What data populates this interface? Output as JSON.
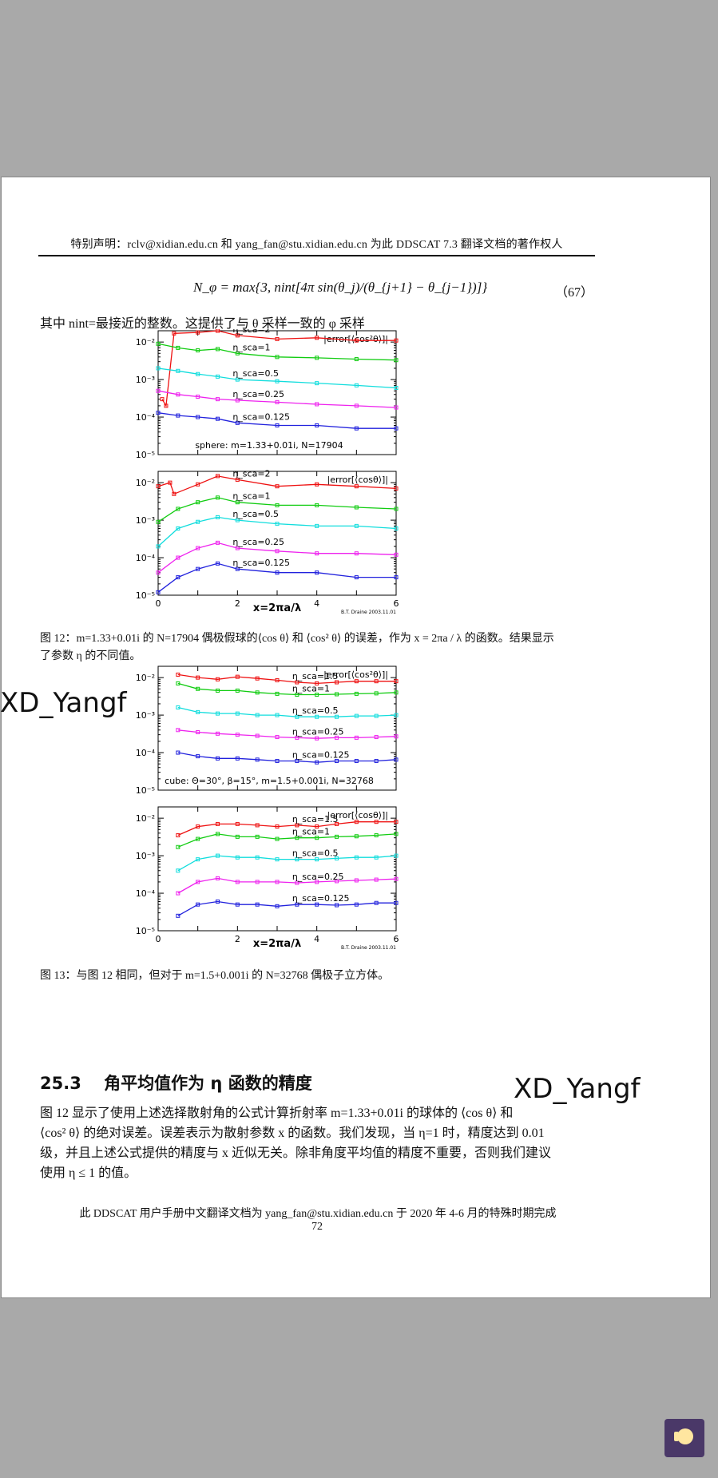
{
  "header": "特别声明：rclv@xidian.edu.cn 和 yang_fan@stu.xidian.edu.cn 为此 DDSCAT 7.3 翻译文档的著作权人",
  "equation": "N_φ = max{3, nint[4π sin(θ_j)/(θ_{j+1} − θ_{j−1})]}",
  "equation_number": "（67）",
  "intro": "其中 nint=最接近的整数。这提供了与 θ 采样一致的 φ 采样",
  "figure12_caption_line1": "图 12：m=1.33+0.01i 的 N=17904 偶极假球的⟨cos θ⟩ 和 ⟨cos² θ⟩ 的误差，作为 x = 2πa / λ 的函数。结果显示",
  "figure12_caption_line2": "了参数 η 的不同值。",
  "figure13_caption": "图 13：与图 12 相同，但对于 m=1.5+0.001i 的 N=32768 偶极子立方体。",
  "section_title": "25.3　 角平均值作为 η 函数的精度",
  "body_lines": [
    "图 12 显示了使用上述选择散射角的公式计算折射率 m=1.33+0.01i 的球体的 ⟨cos θ⟩ 和",
    "⟨cos² θ⟩ 的绝对误差。误差表示为散射参数 x 的函数。我们发现，当 η=1 时，精度达到 0.01",
    "级，并且上述公式提供的精度与 x 近似无关。除非角度平均值的精度不重要，否则我们建议",
    "使用 η ≤ 1 的值。"
  ],
  "footer": "此 DDSCAT 用户手册中文翻译文档为 yang_fan@stu.xidian.edu.cn 于 2020 年 4-6 月的特殊时期完成",
  "page_number": "72",
  "watermark": "XD_Yangf",
  "colors": {
    "red": "#ee1111",
    "green": "#11cc11",
    "cyan": "#11dddd",
    "magenta": "#ee22ee",
    "blue": "#2222dd"
  },
  "chart_data": [
    {
      "type": "line",
      "title": "|error[⟨cos²θ⟩]|",
      "subtitle": "sphere: m=1.33+0.01i, N=17904",
      "yscale": "log",
      "ylim": [
        1e-05,
        0.02
      ],
      "xlim": [
        0,
        6
      ],
      "yticks": [
        "10⁻²",
        "10⁻³",
        "10⁻⁴",
        "10⁻⁵"
      ],
      "xticks": [],
      "series": [
        {
          "name": "η_sca=2",
          "color": "red",
          "x": [
            0.1,
            0.2,
            0.4,
            1.0,
            1.5,
            2.0,
            3.0,
            4.0,
            5.0,
            6.0
          ],
          "y": [
            0.0003,
            0.0002,
            0.017,
            0.018,
            0.02,
            0.015,
            0.012,
            0.013,
            0.011,
            0.011
          ]
        },
        {
          "name": "η_sca=1",
          "color": "green",
          "x": [
            0,
            0.5,
            1.0,
            1.5,
            2.0,
            3.0,
            4.0,
            5.0,
            6.0
          ],
          "y": [
            0.009,
            0.007,
            0.006,
            0.0065,
            0.005,
            0.004,
            0.0038,
            0.0035,
            0.0033
          ]
        },
        {
          "name": "η_sca=0.5",
          "color": "cyan",
          "x": [
            0,
            0.5,
            1.0,
            1.5,
            2.0,
            3.0,
            4.0,
            5.0,
            6.0
          ],
          "y": [
            0.002,
            0.0017,
            0.0014,
            0.0012,
            0.001,
            0.0009,
            0.0008,
            0.0007,
            0.0006
          ]
        },
        {
          "name": "η_sca=0.25",
          "color": "magenta",
          "x": [
            0,
            0.5,
            1.0,
            1.5,
            2.0,
            3.0,
            4.0,
            5.0,
            6.0
          ],
          "y": [
            0.0005,
            0.0004,
            0.00035,
            0.0003,
            0.00028,
            0.00025,
            0.00022,
            0.0002,
            0.00018
          ]
        },
        {
          "name": "η_sca=0.125",
          "color": "blue",
          "x": [
            0,
            0.5,
            1.0,
            1.5,
            2.0,
            3.0,
            4.0,
            5.0,
            6.0
          ],
          "y": [
            0.00013,
            0.00011,
            0.0001,
            9e-05,
            7e-05,
            6e-05,
            6e-05,
            5e-05,
            5e-05
          ]
        }
      ]
    },
    {
      "type": "line",
      "title": "|error[⟨cosθ⟩]|",
      "yscale": "log",
      "ylim": [
        1e-05,
        0.02
      ],
      "xlim": [
        0,
        6
      ],
      "yticks": [
        "10⁻²",
        "10⁻³",
        "10⁻⁴",
        "10⁻⁵"
      ],
      "xticks": [
        "0",
        "2",
        "4",
        "6"
      ],
      "xlabel": "x=2πa/λ",
      "credit": "B.T. Draine 2003.11.01",
      "series": [
        {
          "name": "η_sca=2",
          "color": "red",
          "x": [
            0,
            0.3,
            0.4,
            1.0,
            1.5,
            2.0,
            3.0,
            4.0,
            5.0,
            6.0
          ],
          "y": [
            0.008,
            0.01,
            0.005,
            0.009,
            0.015,
            0.012,
            0.008,
            0.009,
            0.008,
            0.007
          ]
        },
        {
          "name": "η_sca=1",
          "color": "green",
          "x": [
            0,
            0.5,
            1.0,
            1.5,
            2.0,
            3.0,
            4.0,
            5.0,
            6.0
          ],
          "y": [
            0.0009,
            0.002,
            0.003,
            0.004,
            0.003,
            0.0025,
            0.0025,
            0.0022,
            0.002
          ]
        },
        {
          "name": "η_sca=0.5",
          "color": "cyan",
          "x": [
            0,
            0.5,
            1.0,
            1.5,
            2.0,
            3.0,
            4.0,
            5.0,
            6.0
          ],
          "y": [
            0.0002,
            0.0006,
            0.0009,
            0.0012,
            0.001,
            0.0008,
            0.0007,
            0.0007,
            0.0006
          ]
        },
        {
          "name": "η_sca=0.25",
          "color": "magenta",
          "x": [
            0,
            0.5,
            1.0,
            1.5,
            2.0,
            3.0,
            4.0,
            5.0,
            6.0
          ],
          "y": [
            4e-05,
            0.0001,
            0.00018,
            0.00025,
            0.00018,
            0.00015,
            0.00013,
            0.00013,
            0.00012
          ]
        },
        {
          "name": "η_sca=0.125",
          "color": "blue",
          "x": [
            0,
            0.5,
            1.0,
            1.5,
            2.0,
            3.0,
            4.0,
            5.0,
            6.0
          ],
          "y": [
            1.2e-05,
            3e-05,
            5e-05,
            7e-05,
            5e-05,
            4e-05,
            4e-05,
            3e-05,
            3e-05
          ]
        }
      ]
    },
    {
      "type": "line",
      "title": "|error[⟨cos²θ⟩]|",
      "subtitle": "cube:   Θ=30°, β=15°, m=1.5+0.001i, N=32768",
      "yscale": "log",
      "ylim": [
        1e-05,
        0.02
      ],
      "xlim": [
        0,
        6
      ],
      "yticks": [
        "10⁻²",
        "10⁻³",
        "10⁻⁴",
        "10⁻⁵"
      ],
      "xticks": [],
      "series": [
        {
          "name": "η_sca=1.5",
          "color": "red",
          "x": [
            0.5,
            1.0,
            1.5,
            2.0,
            2.5,
            3.0,
            3.5,
            4.0,
            4.5,
            5.0,
            5.5,
            6.0
          ],
          "y": [
            0.012,
            0.01,
            0.009,
            0.0105,
            0.0095,
            0.0085,
            0.0075,
            0.007,
            0.0075,
            0.008,
            0.008,
            0.008
          ]
        },
        {
          "name": "η_sca=1",
          "color": "green",
          "x": [
            0.5,
            1.0,
            1.5,
            2.0,
            2.5,
            3.0,
            3.5,
            4.0,
            4.5,
            5.0,
            5.5,
            6.0
          ],
          "y": [
            0.007,
            0.005,
            0.0045,
            0.0045,
            0.004,
            0.0037,
            0.0035,
            0.0035,
            0.0036,
            0.0037,
            0.0038,
            0.004
          ]
        },
        {
          "name": "η_sca=0.5",
          "color": "cyan",
          "x": [
            0.5,
            1.0,
            1.5,
            2.0,
            2.5,
            3.0,
            3.5,
            4.0,
            4.5,
            5.0,
            5.5,
            6.0
          ],
          "y": [
            0.0016,
            0.0012,
            0.0011,
            0.0011,
            0.001,
            0.001,
            0.0009,
            0.0009,
            0.0009,
            0.00095,
            0.00095,
            0.001
          ]
        },
        {
          "name": "η_sca=0.25",
          "color": "magenta",
          "x": [
            0.5,
            1.0,
            1.5,
            2.0,
            2.5,
            3.0,
            3.5,
            4.0,
            4.5,
            5.0,
            5.5,
            6.0
          ],
          "y": [
            0.0004,
            0.00035,
            0.00032,
            0.0003,
            0.00028,
            0.00026,
            0.00025,
            0.00024,
            0.00025,
            0.00025,
            0.00026,
            0.00027
          ]
        },
        {
          "name": "η_sca=0.125",
          "color": "blue",
          "x": [
            0.5,
            1.0,
            1.5,
            2.0,
            2.5,
            3.0,
            3.5,
            4.0,
            4.5,
            5.0,
            5.5,
            6.0
          ],
          "y": [
            0.0001,
            8e-05,
            7e-05,
            7e-05,
            6.5e-05,
            6e-05,
            6e-05,
            5.5e-05,
            6e-05,
            6e-05,
            6e-05,
            6.5e-05
          ]
        }
      ]
    },
    {
      "type": "line",
      "title": "|error[⟨cosθ⟩]|",
      "yscale": "log",
      "ylim": [
        1e-05,
        0.02
      ],
      "xlim": [
        0,
        6
      ],
      "yticks": [
        "10⁻²",
        "10⁻³",
        "10⁻⁴",
        "10⁻⁵"
      ],
      "xticks": [
        "0",
        "2",
        "4",
        "6"
      ],
      "xlabel": "x=2πa/λ",
      "credit": "B.T. Draine 2003.11.01",
      "series": [
        {
          "name": "η_sca=1.5",
          "color": "red",
          "x": [
            0.5,
            1.0,
            1.5,
            2.0,
            2.5,
            3.0,
            3.5,
            4.0,
            4.5,
            5.0,
            5.5,
            6.0
          ],
          "y": [
            0.0035,
            0.006,
            0.007,
            0.007,
            0.0065,
            0.006,
            0.0065,
            0.006,
            0.007,
            0.008,
            0.008,
            0.008
          ]
        },
        {
          "name": "η_sca=1",
          "color": "green",
          "x": [
            0.5,
            1.0,
            1.5,
            2.0,
            2.5,
            3.0,
            3.5,
            4.0,
            4.5,
            5.0,
            5.5,
            6.0
          ],
          "y": [
            0.0017,
            0.0028,
            0.0038,
            0.0032,
            0.0032,
            0.0028,
            0.003,
            0.003,
            0.0032,
            0.0033,
            0.0035,
            0.0038
          ]
        },
        {
          "name": "η_sca=0.5",
          "color": "cyan",
          "x": [
            0.5,
            1.0,
            1.5,
            2.0,
            2.5,
            3.0,
            3.5,
            4.0,
            4.5,
            5.0,
            5.5,
            6.0
          ],
          "y": [
            0.0004,
            0.0008,
            0.001,
            0.0009,
            0.0009,
            0.0008,
            0.0008,
            0.0008,
            0.00085,
            0.0009,
            0.0009,
            0.001
          ]
        },
        {
          "name": "η_sca=0.25",
          "color": "magenta",
          "x": [
            0.5,
            1.0,
            1.5,
            2.0,
            2.5,
            3.0,
            3.5,
            4.0,
            4.5,
            5.0,
            5.5,
            6.0
          ],
          "y": [
            0.0001,
            0.0002,
            0.00025,
            0.0002,
            0.0002,
            0.0002,
            0.00019,
            0.0002,
            0.00021,
            0.00022,
            0.00023,
            0.00024
          ]
        },
        {
          "name": "η_sca=0.125",
          "color": "blue",
          "x": [
            0.5,
            1.0,
            1.5,
            2.0,
            2.5,
            3.0,
            3.5,
            4.0,
            4.5,
            5.0,
            5.5,
            6.0
          ],
          "y": [
            2.5e-05,
            5e-05,
            6e-05,
            5e-05,
            5e-05,
            4.5e-05,
            5e-05,
            5e-05,
            4.8e-05,
            5e-05,
            5.5e-05,
            5.5e-05
          ]
        }
      ]
    }
  ]
}
